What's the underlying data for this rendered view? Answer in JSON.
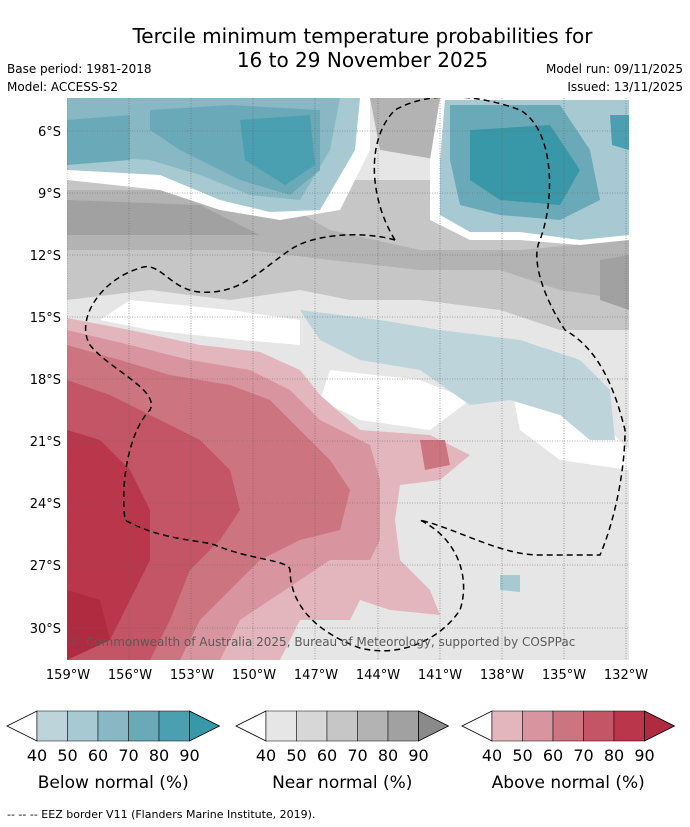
{
  "title_line1": "Tercile minimum temperature probabilities for",
  "title_line2": "16 to 29 November 2025",
  "base_period": "Base period: 1981-2018",
  "model": "Model: ACCESS-S2",
  "model_run": "Model run: 09/11/2025",
  "issued": "Issued: 13/11/2025",
  "lat_labels": [
    "6°S",
    "9°S",
    "12°S",
    "15°S",
    "18°S",
    "21°S",
    "24°S",
    "27°S",
    "30°S"
  ],
  "lon_labels": [
    "159°W",
    "156°W",
    "153°W",
    "150°W",
    "147°W",
    "144°W",
    "141°W",
    "138°W",
    "135°W",
    "132°W"
  ],
  "copyright": "© Commonwealth of Australia 2025, Bureau of Meteorology, supported by COSPPac",
  "colorbars": [
    {
      "title": "Below normal (%)",
      "ticks": [
        "40",
        "50",
        "60",
        "70",
        "80",
        "90"
      ],
      "colors": [
        "#bdd4db",
        "#a6c9d2",
        "#88b8c4",
        "#6aaab8",
        "#4aa0b0"
      ],
      "arrow": "#3898a8"
    },
    {
      "title": "Near normal (%)",
      "ticks": [
        "40",
        "50",
        "60",
        "70",
        "80",
        "90"
      ],
      "colors": [
        "#e6e6e6",
        "#d7d7d7",
        "#c6c6c6",
        "#b3b3b3",
        "#a1a1a1"
      ],
      "arrow": "#8a8a8a"
    },
    {
      "title": "Above normal (%)",
      "ticks": [
        "40",
        "50",
        "60",
        "70",
        "80",
        "90"
      ],
      "colors": [
        "#e3b6bd",
        "#d8959f",
        "#cd7481",
        "#c35566",
        "#b9364b"
      ],
      "arrow": "#b02a40"
    }
  ],
  "legend_note": "--  --  -- EEZ border V11 (Flanders Marine Institute, 2019)."
}
